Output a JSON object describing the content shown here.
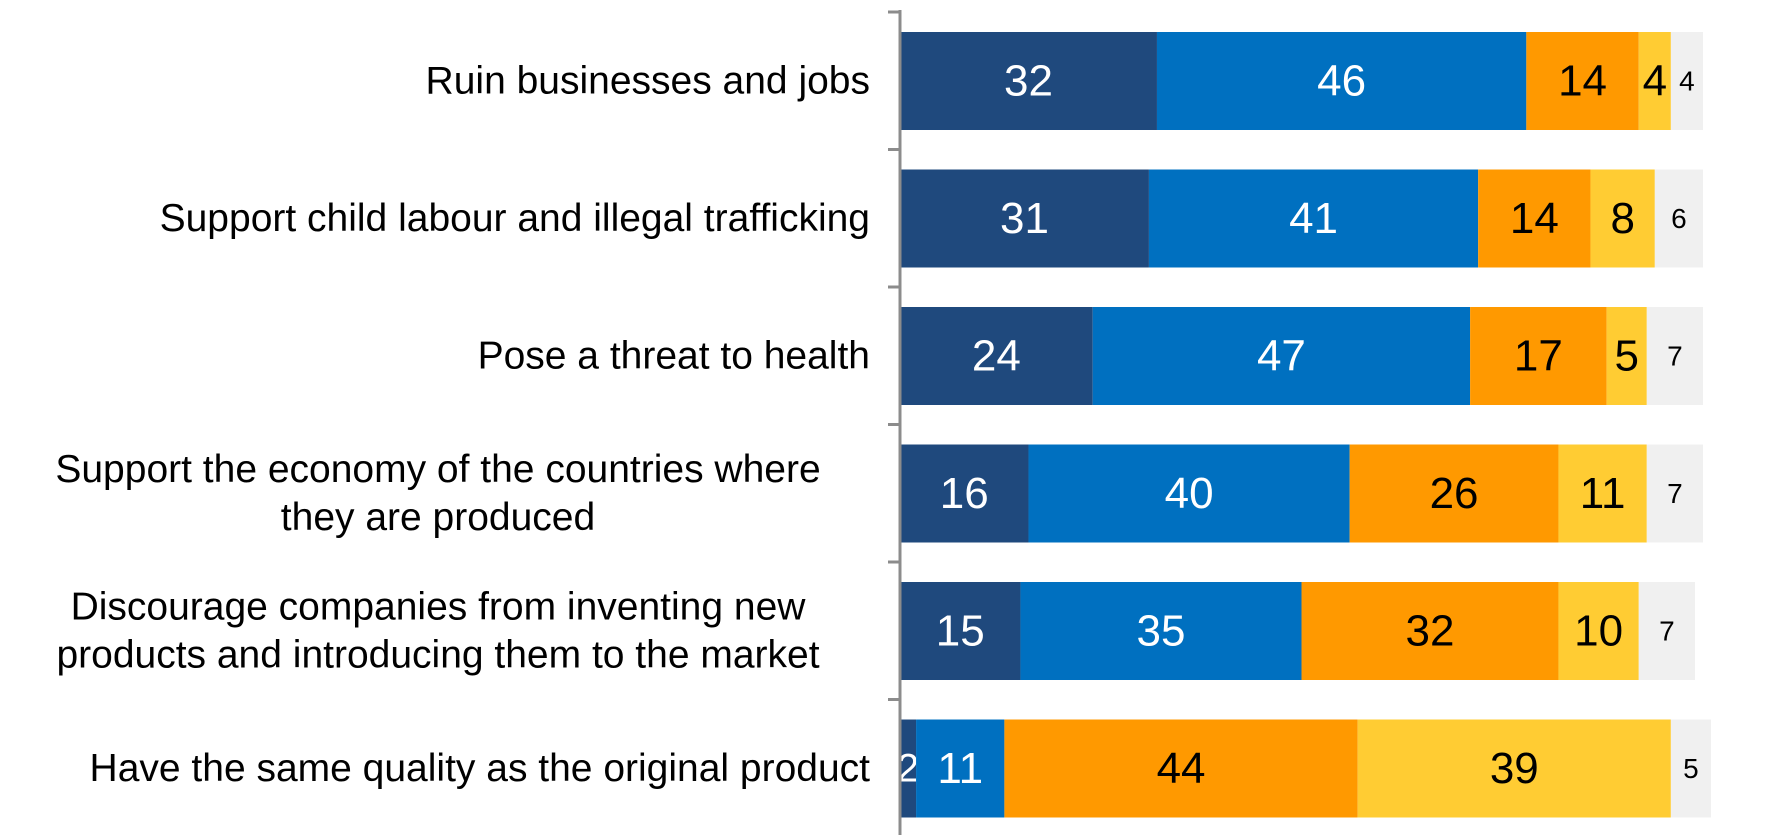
{
  "chart_data": {
    "type": "bar",
    "orientation": "horizontal",
    "stacked": true,
    "categories": [
      "Ruin businesses and jobs",
      "Support child labour and illegal trafficking",
      "Pose a threat to health",
      "Support the economy of the countries where they are produced",
      "Discourage companies from inventing new products and introducing them to the market",
      "Have the same quality as the original product"
    ],
    "category_lines": [
      [
        "Ruin businesses and jobs"
      ],
      [
        "Support child labour and illegal trafficking"
      ],
      [
        "Pose a threat to health"
      ],
      [
        "Support the economy of the countries where",
        "they are produced"
      ],
      [
        "Discourage companies from inventing new",
        "products and introducing them to the market"
      ],
      [
        "Have the same quality as the original product"
      ]
    ],
    "series": [
      {
        "color": "#1f497d",
        "label_color": "#ffffff",
        "values": [
          32,
          31,
          24,
          16,
          15,
          2
        ]
      },
      {
        "color": "#0070c0",
        "label_color": "#ffffff",
        "values": [
          46,
          41,
          47,
          40,
          35,
          11
        ]
      },
      {
        "color": "#ff9900",
        "label_color": "#000000",
        "values": [
          14,
          14,
          17,
          26,
          32,
          44
        ]
      },
      {
        "color": "#ffcc33",
        "label_color": "#000000",
        "values": [
          4,
          8,
          5,
          11,
          10,
          39
        ]
      },
      {
        "color": "#f0f0f0",
        "label_color": "#000000",
        "values": [
          4,
          6,
          7,
          7,
          7,
          5
        ]
      }
    ],
    "xlim": [
      0,
      100
    ],
    "grid": false,
    "legend": "none",
    "xlabel": "",
    "ylabel": "",
    "title": ""
  }
}
